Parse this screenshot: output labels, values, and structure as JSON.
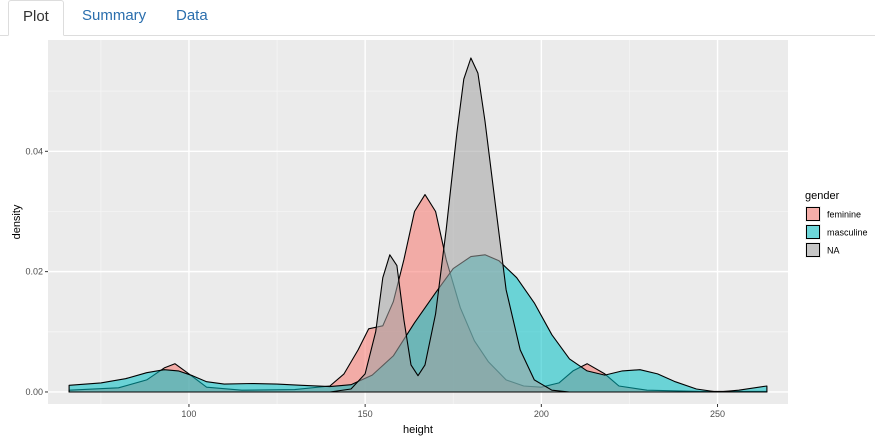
{
  "tabs": [
    {
      "label": "Plot",
      "active": true
    },
    {
      "label": "Summary",
      "active": false
    },
    {
      "label": "Data",
      "active": false
    }
  ],
  "chart_data": {
    "type": "area",
    "xlabel": "height",
    "ylabel": "density",
    "xlim": [
      60,
      270
    ],
    "ylim": [
      -0.002,
      0.0585
    ],
    "x_ticks": [
      100,
      150,
      200,
      250
    ],
    "y_ticks": [
      0.0,
      0.02,
      0.04
    ],
    "y_tick_labels": [
      "0.00",
      "0.02",
      "0.04"
    ],
    "grid": true,
    "legend": {
      "title": "gender",
      "position": "right"
    },
    "series": [
      {
        "name": "feminine",
        "color": "#F8766D",
        "points": [
          [
            66,
            0.0003
          ],
          [
            80,
            0.0007
          ],
          [
            88,
            0.002
          ],
          [
            93,
            0.004
          ],
          [
            96,
            0.0047
          ],
          [
            100,
            0.003
          ],
          [
            105,
            0.0008
          ],
          [
            115,
            0.0003
          ],
          [
            130,
            0.0004
          ],
          [
            140,
            0.001
          ],
          [
            144,
            0.003
          ],
          [
            148,
            0.007
          ],
          [
            151,
            0.0105
          ],
          [
            155,
            0.011
          ],
          [
            158,
            0.015
          ],
          [
            161,
            0.022
          ],
          [
            164,
            0.03
          ],
          [
            167,
            0.0328
          ],
          [
            170,
            0.03
          ],
          [
            173,
            0.022
          ],
          [
            177,
            0.014
          ],
          [
            181,
            0.0085
          ],
          [
            185,
            0.005
          ],
          [
            190,
            0.002
          ],
          [
            195,
            0.001
          ],
          [
            200,
            0.0008
          ],
          [
            205,
            0.0015
          ],
          [
            209,
            0.0035
          ],
          [
            213,
            0.0047
          ],
          [
            218,
            0.003
          ],
          [
            222,
            0.001
          ],
          [
            230,
            0.0003
          ],
          [
            245,
            0.0001
          ],
          [
            264,
            0.0001
          ]
        ]
      },
      {
        "name": "masculine",
        "color": "#00BFC4",
        "points": [
          [
            66,
            0.0011
          ],
          [
            75,
            0.0015
          ],
          [
            82,
            0.0022
          ],
          [
            88,
            0.0032
          ],
          [
            93,
            0.0037
          ],
          [
            97,
            0.0035
          ],
          [
            101,
            0.0027
          ],
          [
            105,
            0.0017
          ],
          [
            110,
            0.0013
          ],
          [
            118,
            0.0014
          ],
          [
            125,
            0.0013
          ],
          [
            132,
            0.0011
          ],
          [
            140,
            0.0009
          ],
          [
            146,
            0.0012
          ],
          [
            152,
            0.0028
          ],
          [
            158,
            0.006
          ],
          [
            164,
            0.0115
          ],
          [
            170,
            0.0165
          ],
          [
            175,
            0.0205
          ],
          [
            180,
            0.0225
          ],
          [
            184,
            0.0228
          ],
          [
            188,
            0.0218
          ],
          [
            193,
            0.019
          ],
          [
            198,
            0.0148
          ],
          [
            203,
            0.0095
          ],
          [
            208,
            0.0055
          ],
          [
            213,
            0.0035
          ],
          [
            218,
            0.0028
          ],
          [
            223,
            0.0035
          ],
          [
            228,
            0.0037
          ],
          [
            233,
            0.003
          ],
          [
            238,
            0.0017
          ],
          [
            244,
            0.0005
          ],
          [
            250,
            0.0
          ],
          [
            256,
            0.0003
          ],
          [
            264,
            0.001
          ]
        ]
      },
      {
        "name": "NA",
        "color": "#A3A3A3",
        "points": [
          [
            140,
            0.0
          ],
          [
            146,
            0.0005
          ],
          [
            150,
            0.003
          ],
          [
            153,
            0.01
          ],
          [
            155,
            0.019
          ],
          [
            157,
            0.0228
          ],
          [
            159,
            0.021
          ],
          [
            161,
            0.012
          ],
          [
            163,
            0.0045
          ],
          [
            165,
            0.0027
          ],
          [
            167,
            0.0045
          ],
          [
            170,
            0.013
          ],
          [
            173,
            0.027
          ],
          [
            176,
            0.043
          ],
          [
            178,
            0.052
          ],
          [
            180,
            0.0555
          ],
          [
            182,
            0.053
          ],
          [
            184,
            0.045
          ],
          [
            187,
            0.031
          ],
          [
            190,
            0.017
          ],
          [
            194,
            0.007
          ],
          [
            198,
            0.002
          ],
          [
            203,
            0.0003
          ],
          [
            208,
            0.0
          ]
        ]
      }
    ]
  }
}
